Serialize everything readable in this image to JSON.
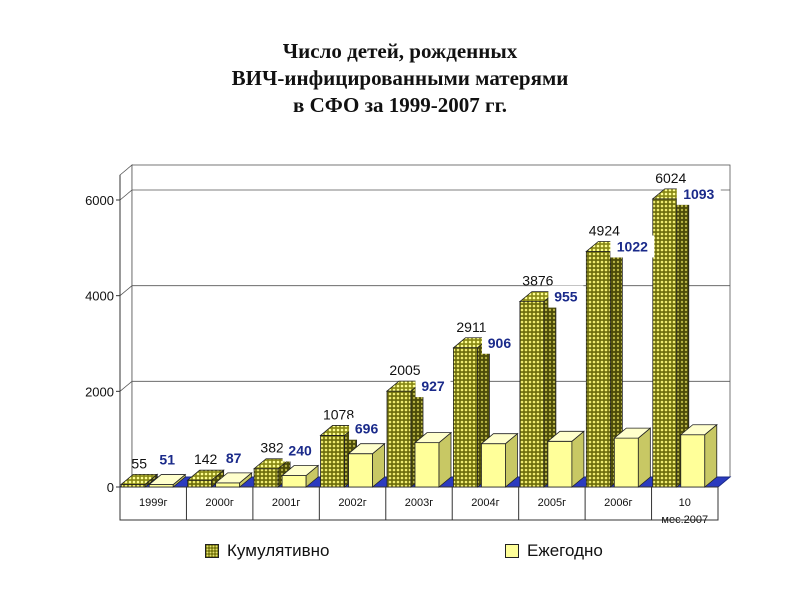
{
  "title_lines": [
    "Число детей, рожденных",
    "ВИЧ-инфицированными матерями",
    "в СФО за 1999-2007 гг."
  ],
  "colors": {
    "cumulative": "#ffff66",
    "annual": "#ffff99",
    "annual_label": "#1a2a8a"
  },
  "chart_data": {
    "type": "bar",
    "title": "Число детей, рожденных ВИЧ-инфицированными матерями в СФО за 1999-2007 гг.",
    "categories": [
      "1999г",
      "2000г",
      "2001г",
      "2002г",
      "2003г",
      "2004г",
      "2005г",
      "2006г",
      "10 мес.2007"
    ],
    "category_lines": [
      [
        "1999г"
      ],
      [
        "2000г"
      ],
      [
        "2001г"
      ],
      [
        "2002г"
      ],
      [
        "2003г"
      ],
      [
        "2004г"
      ],
      [
        "2005г"
      ],
      [
        "2006г"
      ],
      [
        "10",
        "мес.2007"
      ]
    ],
    "series": [
      {
        "name": "Кумулятивно",
        "values": [
          55,
          142,
          382,
          1078,
          2005,
          2911,
          3876,
          4924,
          6024
        ],
        "labels": [
          "55",
          "142",
          "382",
          "1078",
          "2005",
          "2911",
          "3876",
          "4924",
          "6024"
        ]
      },
      {
        "name": "Ежегодно",
        "values": [
          51,
          87,
          240,
          696,
          927,
          906,
          955,
          1022,
          1093
        ],
        "labels": [
          "51",
          "87",
          "240",
          "696",
          "927",
          "906",
          "955",
          "1022",
          "1093"
        ]
      }
    ],
    "ylim": [
      0,
      6000
    ],
    "yticks": [
      "0",
      "2000",
      "4000",
      "6000"
    ],
    "ytick_values": [
      0,
      2000,
      4000,
      6000
    ],
    "grid": true,
    "legend_position": "bottom",
    "style": "3d-clustered-column"
  }
}
